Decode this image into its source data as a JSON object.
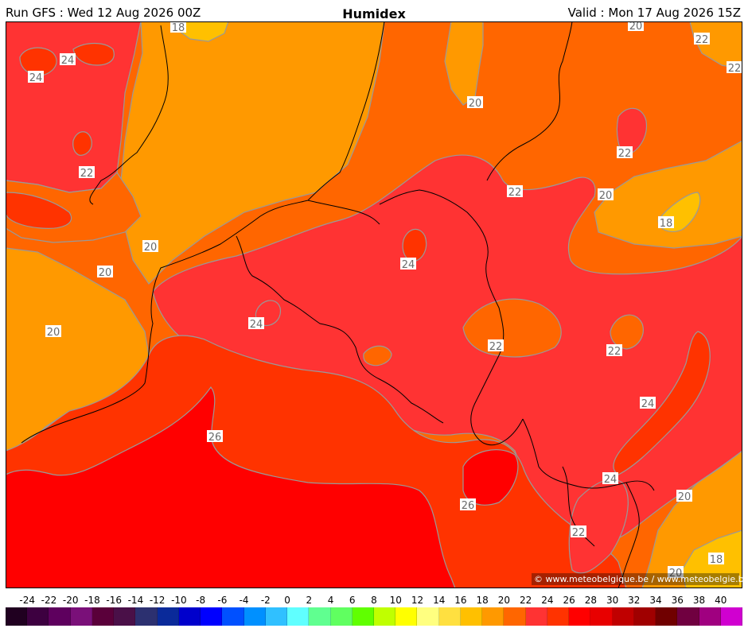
{
  "header": {
    "run": "Run GFS : Wed 12 Aug 2026 00Z",
    "title": "Humidex",
    "valid": "Valid : Mon 17 Aug 2026 15Z"
  },
  "copyright": "© www.meteobelgique.be / www.meteobelgie.be",
  "contour_labels": [
    {
      "id": "l1",
      "text": "18"
    },
    {
      "id": "l2",
      "text": "24"
    },
    {
      "id": "l3",
      "text": "24"
    },
    {
      "id": "l4",
      "text": "20"
    },
    {
      "id": "l5",
      "text": "20"
    },
    {
      "id": "l6",
      "text": "22"
    },
    {
      "id": "l7",
      "text": "22"
    },
    {
      "id": "l8",
      "text": "22"
    },
    {
      "id": "l9",
      "text": "20"
    },
    {
      "id": "l10",
      "text": "18"
    },
    {
      "id": "l11",
      "text": "20"
    },
    {
      "id": "l12",
      "text": "20"
    },
    {
      "id": "l13",
      "text": "24"
    },
    {
      "id": "l14",
      "text": "20"
    },
    {
      "id": "l15",
      "text": "24"
    },
    {
      "id": "l16",
      "text": "22"
    },
    {
      "id": "l17",
      "text": "22"
    },
    {
      "id": "l18",
      "text": "22"
    },
    {
      "id": "l19",
      "text": "22"
    },
    {
      "id": "l20",
      "text": "24"
    },
    {
      "id": "l21",
      "text": "26"
    },
    {
      "id": "l22",
      "text": "26"
    },
    {
      "id": "l23",
      "text": "24"
    },
    {
      "id": "l24",
      "text": "20"
    },
    {
      "id": "l25",
      "text": "22"
    },
    {
      "id": "l26",
      "text": "18"
    },
    {
      "id": "l27",
      "text": "20"
    }
  ],
  "color_scale": {
    "labels": [
      "-24",
      "-22",
      "-20",
      "-18",
      "-16",
      "-14",
      "-12",
      "-10",
      "-8",
      "-6",
      "-4",
      "-2",
      "0",
      "2",
      "4",
      "6",
      "8",
      "10",
      "12",
      "14",
      "16",
      "18",
      "20",
      "22",
      "24",
      "26",
      "28",
      "30",
      "32",
      "34",
      "36",
      "38",
      "40"
    ],
    "colors": [
      "#200020",
      "#3d0040",
      "#5e005e",
      "#7a1079",
      "#5a003a",
      "#4a1048",
      "#2c3070",
      "#0a2a9a",
      "#0000cc",
      "#0000ff",
      "#0050ff",
      "#0090ff",
      "#30c0ff",
      "#60ffff",
      "#60ff90",
      "#60ff60",
      "#60ff00",
      "#c0ff00",
      "#ffff00",
      "#ffff80",
      "#ffe040",
      "#ffc000",
      "#ff9900",
      "#ff6600",
      "#ff3333",
      "#ff3300",
      "#ff0000",
      "#e80000",
      "#c00000",
      "#a00000",
      "#700000",
      "#700040",
      "#a00080",
      "#d000d0"
    ]
  },
  "colors": {
    "c18": "#ffc000",
    "c20": "#ff9900",
    "c22": "#ff6600",
    "c24": "#ff3333",
    "c26": "#ff3300",
    "c28": "#ff0000",
    "contour": "#999999",
    "border": "#000000"
  }
}
